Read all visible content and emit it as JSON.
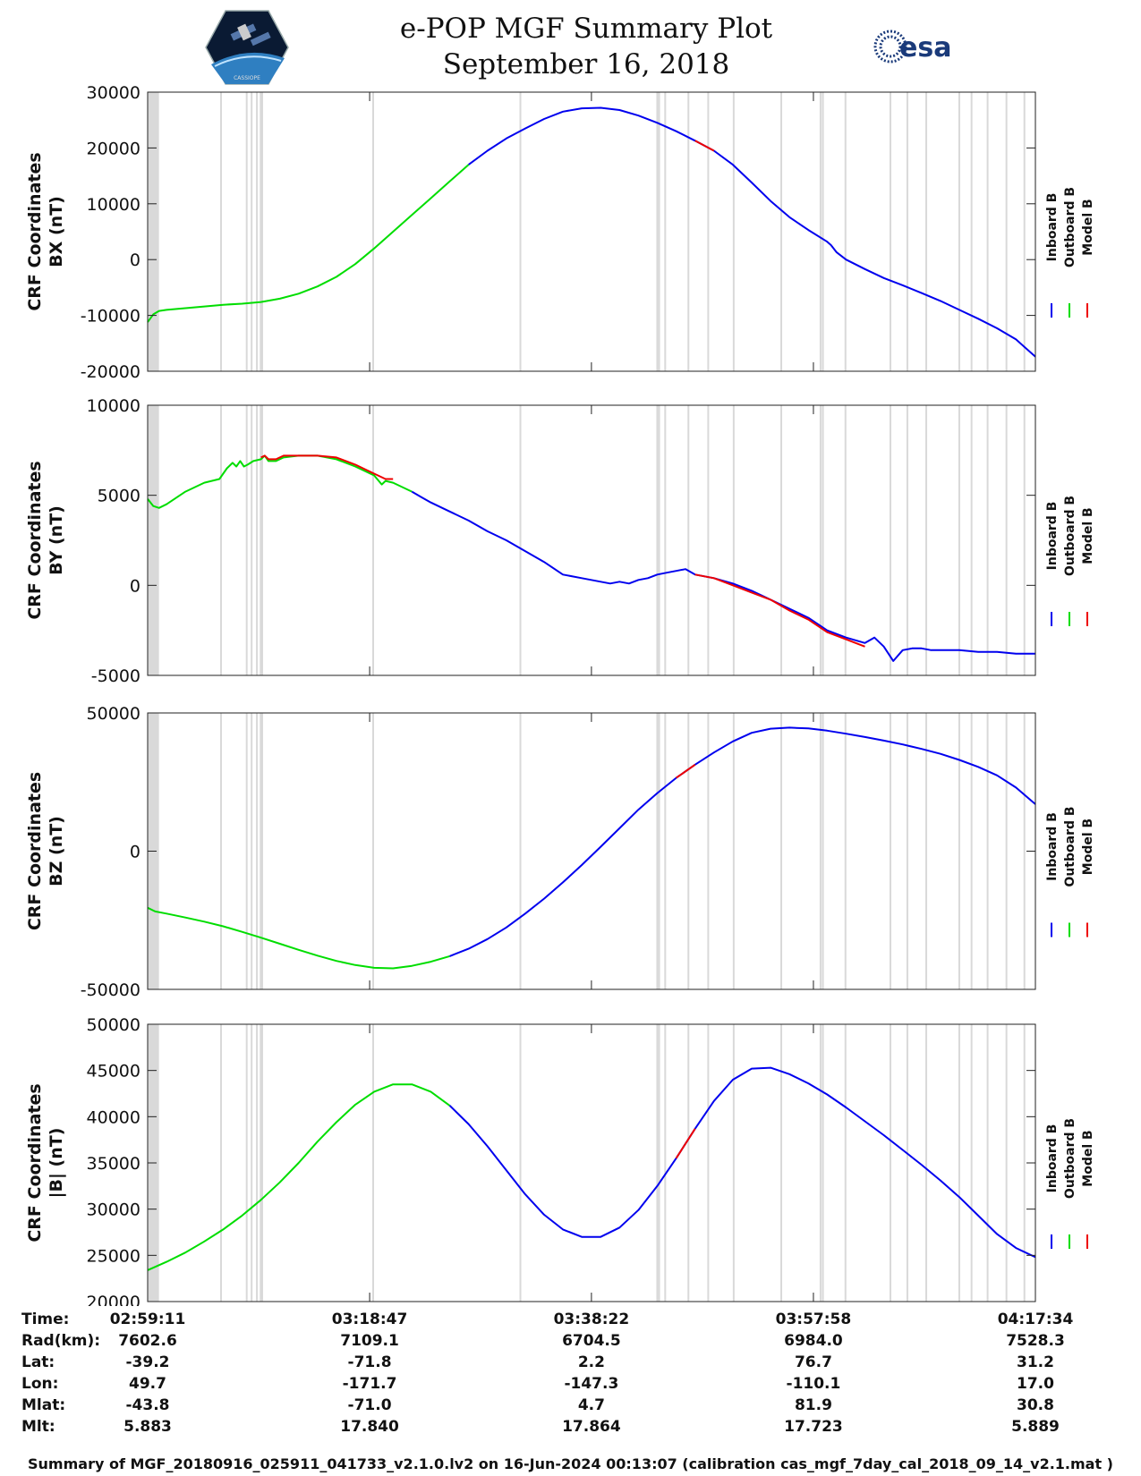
{
  "header": {
    "title": "e-POP MGF Summary Plot",
    "date": "September 16, 2018",
    "esa_logo_text": "esa",
    "epop_logo_text": "CASSIOPE"
  },
  "colors": {
    "inboard": "#0000ee",
    "outboard": "#00dd00",
    "model": "#ee0000",
    "gap_band": "#d9d9d9"
  },
  "legend": [
    "Inboard B",
    "Outboard B",
    "Model B"
  ],
  "x_axis": {
    "range_seconds": [
      0,
      4703
    ],
    "major_ticks_seconds": [
      0,
      1176,
      2351,
      3527,
      4703
    ]
  },
  "gap_bands_seconds": [
    [
      3,
      60
    ],
    [
      384,
      389
    ],
    [
      520,
      526
    ],
    [
      546,
      552
    ],
    [
      574,
      580
    ],
    [
      594,
      600
    ],
    [
      602,
      608
    ],
    [
      1190,
      1198
    ],
    [
      1970,
      1975
    ],
    [
      2695,
      2700
    ],
    [
      2705,
      2712
    ],
    [
      2737,
      2742
    ],
    [
      2860,
      2866
    ],
    [
      2965,
      2970
    ],
    [
      3100,
      3106
    ],
    [
      3352,
      3358
    ],
    [
      3560,
      3568
    ],
    [
      3572,
      3582
    ],
    [
      3692,
      3698
    ],
    [
      3930,
      3936
    ],
    [
      4020,
      4026
    ],
    [
      4120,
      4126
    ],
    [
      4295,
      4300
    ],
    [
      4360,
      4366
    ],
    [
      4445,
      4450
    ],
    [
      4545,
      4550
    ],
    [
      4640,
      4645
    ]
  ],
  "chart_data": [
    {
      "type": "line",
      "ylabel": [
        "CRF Coordinates",
        "BX (nT)"
      ],
      "ylim": [
        -20000,
        30000
      ],
      "yticks": [
        "30000",
        "20000",
        "10000",
        "0",
        "-10000",
        "-20000"
      ],
      "x": [
        0,
        30,
        60,
        100,
        200,
        300,
        400,
        500,
        600,
        700,
        800,
        900,
        1000,
        1100,
        1200,
        1300,
        1400,
        1500,
        1600,
        1700,
        1800,
        1900,
        2000,
        2100,
        2200,
        2300,
        2400,
        2500,
        2600,
        2700,
        2800,
        2900,
        3000,
        3100,
        3200,
        3300,
        3400,
        3500,
        3600,
        3620,
        3650,
        3700,
        3800,
        3900,
        4000,
        4100,
        4200,
        4300,
        4400,
        4500,
        4600,
        4703
      ],
      "series": [
        {
          "name": "Outboard B",
          "values": [
            -11200,
            -9800,
            -9200,
            -9000,
            -8700,
            -8400,
            -8100,
            -7900,
            -7600,
            -7000,
            -6100,
            -4800,
            -3100,
            -800,
            2000,
            5000,
            8000,
            11000,
            14000,
            17000,
            null,
            null,
            null,
            null,
            null,
            null,
            null,
            null,
            null,
            null,
            null,
            null,
            null,
            null,
            null,
            null,
            null,
            null,
            null,
            null,
            null,
            null,
            null,
            null,
            null,
            null,
            null,
            null,
            null,
            null,
            null,
            null
          ]
        },
        {
          "name": "Inboard B",
          "values": [
            null,
            null,
            null,
            null,
            null,
            null,
            null,
            null,
            null,
            null,
            null,
            null,
            null,
            null,
            null,
            null,
            null,
            null,
            null,
            17000,
            19500,
            21700,
            23500,
            25200,
            26500,
            27100,
            27200,
            26800,
            25800,
            24500,
            23000,
            21300,
            19500,
            17000,
            13800,
            10500,
            7600,
            5300,
            3200,
            2600,
            1300,
            0,
            -1700,
            -3300,
            -4600,
            -6000,
            -7400,
            -9000,
            -10600,
            -12300,
            -14300,
            -17400
          ]
        },
        {
          "name": "Model B",
          "values": [
            null,
            null,
            null,
            null,
            null,
            null,
            null,
            null,
            null,
            null,
            null,
            null,
            null,
            null,
            null,
            null,
            null,
            null,
            null,
            null,
            null,
            null,
            null,
            null,
            null,
            null,
            null,
            null,
            null,
            null,
            null,
            21300,
            19500,
            null,
            null,
            null,
            null,
            null,
            null,
            null,
            null,
            null,
            null,
            null,
            null,
            null,
            null,
            null,
            null,
            null,
            null,
            null
          ]
        }
      ]
    },
    {
      "type": "line",
      "ylabel": [
        "CRF Coordinates",
        "BY (nT)"
      ],
      "ylim": [
        -5000,
        10000
      ],
      "yticks": [
        "10000",
        "5000",
        "0",
        "-5000"
      ],
      "x": [
        0,
        30,
        60,
        100,
        200,
        300,
        380,
        420,
        450,
        470,
        490,
        510,
        530,
        560,
        600,
        620,
        640,
        680,
        720,
        800,
        900,
        1000,
        1100,
        1200,
        1240,
        1260,
        1300,
        1400,
        1450,
        1500,
        1600,
        1700,
        1800,
        1900,
        2000,
        2100,
        2200,
        2300,
        2350,
        2400,
        2450,
        2500,
        2550,
        2600,
        2650,
        2700,
        2750,
        2800,
        2850,
        2900,
        3000,
        3100,
        3200,
        3300,
        3400,
        3500,
        3600,
        3700,
        3800,
        3850,
        3900,
        3950,
        4000,
        4050,
        4100,
        4150,
        4200,
        4300,
        4400,
        4500,
        4600,
        4703
      ],
      "series": [
        {
          "name": "Outboard B",
          "values": [
            4800,
            4400,
            4300,
            4500,
            5200,
            5700,
            5900,
            6500,
            6800,
            6600,
            6900,
            6600,
            6700,
            6900,
            7000,
            7200,
            6900,
            6900,
            7100,
            7200,
            7200,
            7000,
            6600,
            6100,
            5600,
            5800,
            5700,
            5200,
            null,
            null,
            null,
            null,
            null,
            null,
            null,
            null,
            null,
            null,
            null,
            null,
            null,
            null,
            null,
            null,
            null,
            null,
            null,
            null,
            null,
            null,
            null,
            null,
            null,
            null,
            null,
            null,
            null,
            null,
            null,
            null,
            null,
            null,
            null,
            null,
            null,
            null,
            null,
            null,
            null,
            null,
            null,
            null
          ]
        },
        {
          "name": "Inboard B",
          "values": [
            null,
            null,
            null,
            null,
            null,
            null,
            null,
            null,
            null,
            null,
            null,
            null,
            null,
            null,
            null,
            null,
            null,
            null,
            null,
            null,
            null,
            null,
            null,
            null,
            null,
            null,
            null,
            5200,
            4900,
            4600,
            4100,
            3600,
            3000,
            2500,
            1900,
            1300,
            600,
            400,
            300,
            200,
            100,
            200,
            100,
            300,
            400,
            600,
            700,
            800,
            900,
            600,
            400,
            100,
            -300,
            -800,
            -1300,
            -1800,
            -2500,
            -2900,
            -3200,
            -2900,
            -3400,
            -4200,
            -3600,
            -3500,
            -3500,
            -3600,
            -3600,
            -3600,
            -3700,
            -3700,
            -3800,
            -3800
          ]
        },
        {
          "name": "Model B",
          "values": [
            null,
            null,
            null,
            null,
            null,
            null,
            null,
            null,
            null,
            null,
            null,
            null,
            null,
            null,
            7100,
            7200,
            7000,
            7000,
            7200,
            7200,
            7200,
            7100,
            6700,
            6200,
            6000,
            5900,
            5900,
            null,
            null,
            null,
            null,
            null,
            null,
            null,
            null,
            null,
            null,
            null,
            null,
            null,
            null,
            null,
            null,
            null,
            null,
            null,
            null,
            null,
            null,
            600,
            400,
            0,
            -400,
            -800,
            -1400,
            -1900,
            -2600,
            -3000,
            -3400,
            null,
            null,
            null,
            null,
            null,
            null,
            null,
            null,
            null,
            null,
            null,
            null,
            null
          ]
        }
      ]
    },
    {
      "type": "line",
      "ylabel": [
        "CRF Coordinates",
        "BZ (nT)"
      ],
      "ylim": [
        -50000,
        50000
      ],
      "yticks": [
        "50000",
        "0",
        "-50000"
      ],
      "x": [
        0,
        40,
        100,
        200,
        300,
        400,
        500,
        600,
        700,
        800,
        900,
        1000,
        1100,
        1200,
        1300,
        1400,
        1500,
        1600,
        1700,
        1800,
        1900,
        2000,
        2100,
        2200,
        2300,
        2400,
        2500,
        2600,
        2700,
        2800,
        2900,
        3000,
        3100,
        3200,
        3300,
        3400,
        3500,
        3600,
        3700,
        3800,
        3900,
        4000,
        4100,
        4200,
        4300,
        4400,
        4500,
        4600,
        4703
      ],
      "series": [
        {
          "name": "Outboard B",
          "values": [
            -20500,
            -21800,
            -22600,
            -24000,
            -25500,
            -27200,
            -29200,
            -31300,
            -33500,
            -35700,
            -37800,
            -39700,
            -41200,
            -42200,
            -42400,
            -41500,
            -40000,
            -38000,
            null,
            null,
            null,
            null,
            null,
            null,
            null,
            null,
            null,
            null,
            null,
            null,
            null,
            null,
            null,
            null,
            null,
            null,
            null,
            null,
            null,
            null,
            null,
            null,
            null,
            null,
            null,
            null,
            null,
            null,
            null
          ]
        },
        {
          "name": "Inboard B",
          "values": [
            null,
            null,
            null,
            null,
            null,
            null,
            null,
            null,
            null,
            null,
            null,
            null,
            null,
            null,
            null,
            null,
            null,
            -38000,
            -35300,
            -31800,
            -27600,
            -22600,
            -17200,
            -11300,
            -5000,
            1600,
            8300,
            15000,
            21000,
            26500,
            31300,
            35700,
            39700,
            42800,
            44300,
            44700,
            44400,
            43600,
            42500,
            41300,
            40000,
            38600,
            37000,
            35200,
            33000,
            30500,
            27400,
            23000,
            17000
          ]
        },
        {
          "name": "Model B",
          "values": [
            null,
            null,
            null,
            null,
            null,
            null,
            null,
            null,
            null,
            null,
            null,
            null,
            null,
            null,
            null,
            null,
            null,
            null,
            null,
            null,
            null,
            null,
            null,
            null,
            null,
            null,
            null,
            null,
            null,
            26500,
            31300,
            null,
            null,
            null,
            null,
            null,
            null,
            null,
            null,
            null,
            null,
            null,
            null,
            null,
            null,
            null,
            null,
            null,
            null
          ]
        }
      ]
    },
    {
      "type": "line",
      "ylabel": [
        "CRF Coordinates",
        "|B| (nT)"
      ],
      "ylim": [
        20000,
        50000
      ],
      "yticks": [
        "50000",
        "45000",
        "40000",
        "35000",
        "30000",
        "25000",
        "20000"
      ],
      "x": [
        0,
        100,
        200,
        300,
        400,
        500,
        600,
        700,
        800,
        900,
        1000,
        1100,
        1200,
        1300,
        1400,
        1500,
        1600,
        1700,
        1800,
        1900,
        2000,
        2100,
        2200,
        2300,
        2400,
        2500,
        2600,
        2700,
        2800,
        2900,
        3000,
        3100,
        3200,
        3300,
        3400,
        3500,
        3600,
        3700,
        3800,
        3900,
        4000,
        4100,
        4200,
        4300,
        4400,
        4500,
        4600,
        4703
      ],
      "series": [
        {
          "name": "Outboard B",
          "values": [
            23400,
            24300,
            25300,
            26500,
            27800,
            29300,
            31000,
            32900,
            35000,
            37300,
            39400,
            41300,
            42700,
            43500,
            43500,
            42700,
            41200,
            null,
            null,
            null,
            null,
            null,
            null,
            null,
            null,
            null,
            null,
            null,
            null,
            null,
            null,
            null,
            null,
            null,
            null,
            null,
            null,
            null,
            null,
            null,
            null,
            null,
            null,
            null,
            null,
            null,
            null,
            null
          ]
        },
        {
          "name": "Inboard B",
          "values": [
            null,
            null,
            null,
            null,
            null,
            null,
            null,
            null,
            null,
            null,
            null,
            null,
            null,
            null,
            null,
            null,
            41200,
            39200,
            36800,
            34200,
            31600,
            29400,
            27800,
            27000,
            27000,
            28000,
            29900,
            32500,
            35500,
            38700,
            41700,
            44000,
            45200,
            45300,
            44600,
            43600,
            42400,
            41000,
            39500,
            38000,
            36400,
            34800,
            33100,
            31300,
            29300,
            27300,
            25800,
            24800
          ]
        },
        {
          "name": "Model B",
          "values": [
            null,
            null,
            null,
            null,
            null,
            null,
            null,
            null,
            null,
            null,
            null,
            null,
            null,
            null,
            null,
            null,
            null,
            null,
            null,
            null,
            null,
            null,
            null,
            null,
            null,
            null,
            null,
            null,
            35500,
            38700,
            null,
            null,
            null,
            null,
            null,
            null,
            null,
            null,
            null,
            null,
            null,
            null,
            null,
            null,
            null,
            null,
            null,
            null
          ]
        }
      ]
    }
  ],
  "ephemeris": {
    "labels": [
      "Time:",
      "Rad(km):",
      "Lat:",
      "Lon:",
      "Mlat:",
      "Mlt:"
    ],
    "columns": [
      [
        "02:59:11",
        "7602.6",
        "-39.2",
        "49.7",
        "-43.8",
        "5.883"
      ],
      [
        "03:18:47",
        "7109.1",
        "-71.8",
        "-171.7",
        "-71.0",
        "17.840"
      ],
      [
        "03:38:22",
        "6704.5",
        "2.2",
        "-147.3",
        "4.7",
        "17.864"
      ],
      [
        "03:57:58",
        "6984.0",
        "76.7",
        "-110.1",
        "81.9",
        "17.723"
      ],
      [
        "04:17:34",
        "7528.3",
        "31.2",
        "17.0",
        "30.8",
        "5.889"
      ]
    ]
  },
  "footer": "Summary of MGF_20180916_025911_041733_v2.1.0.lv2 on 16-Jun-2024 00:13:07 (calibration cas_mgf_7day_cal_2018_09_14_v2.1.mat )"
}
